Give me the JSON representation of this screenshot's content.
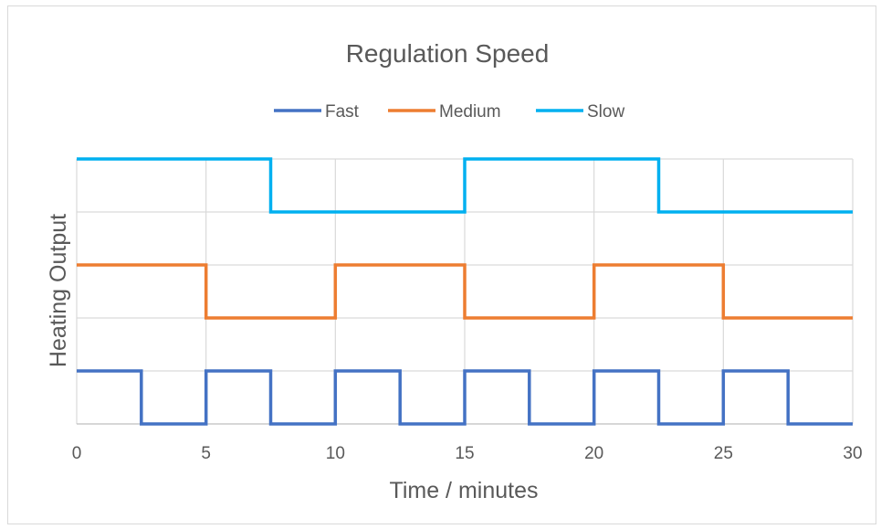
{
  "chart_data": {
    "type": "line",
    "title": "Regulation Speed",
    "xlabel": "Time / minutes",
    "ylabel": "Heating Output",
    "xlim": [
      0,
      30
    ],
    "x_ticks": [
      0,
      5,
      10,
      15,
      20,
      25,
      30
    ],
    "grid": true,
    "legend_position": "top",
    "series": [
      {
        "name": "Fast",
        "color": "#4472c4",
        "step_period_minutes": 5,
        "x": [
          0,
          2.5,
          2.5,
          5,
          5,
          7.5,
          7.5,
          10,
          10,
          12.5,
          12.5,
          15,
          15,
          17.5,
          17.5,
          20,
          20,
          22.5,
          22.5,
          25,
          25,
          27.5,
          27.5,
          30
        ],
        "y": [
          1,
          1,
          0,
          0,
          1,
          1,
          0,
          0,
          1,
          1,
          0,
          0,
          1,
          1,
          0,
          0,
          1,
          1,
          0,
          0,
          1,
          1,
          0,
          0
        ]
      },
      {
        "name": "Medium",
        "color": "#ed7d31",
        "step_period_minutes": 10,
        "x": [
          0,
          5,
          5,
          10,
          10,
          15,
          15,
          20,
          20,
          25,
          25,
          30
        ],
        "y": [
          3,
          3,
          2,
          2,
          3,
          3,
          2,
          2,
          3,
          3,
          2,
          2
        ]
      },
      {
        "name": "Slow",
        "color": "#00b0f0",
        "step_period_minutes": 15,
        "x": [
          0,
          7.5,
          7.5,
          15,
          15,
          22.5,
          22.5,
          30
        ],
        "y": [
          5,
          5,
          4,
          4,
          5,
          5,
          4,
          4
        ]
      }
    ],
    "ylim": [
      0,
      5
    ],
    "y_gridlines": [
      1,
      2,
      3,
      4,
      5
    ]
  }
}
